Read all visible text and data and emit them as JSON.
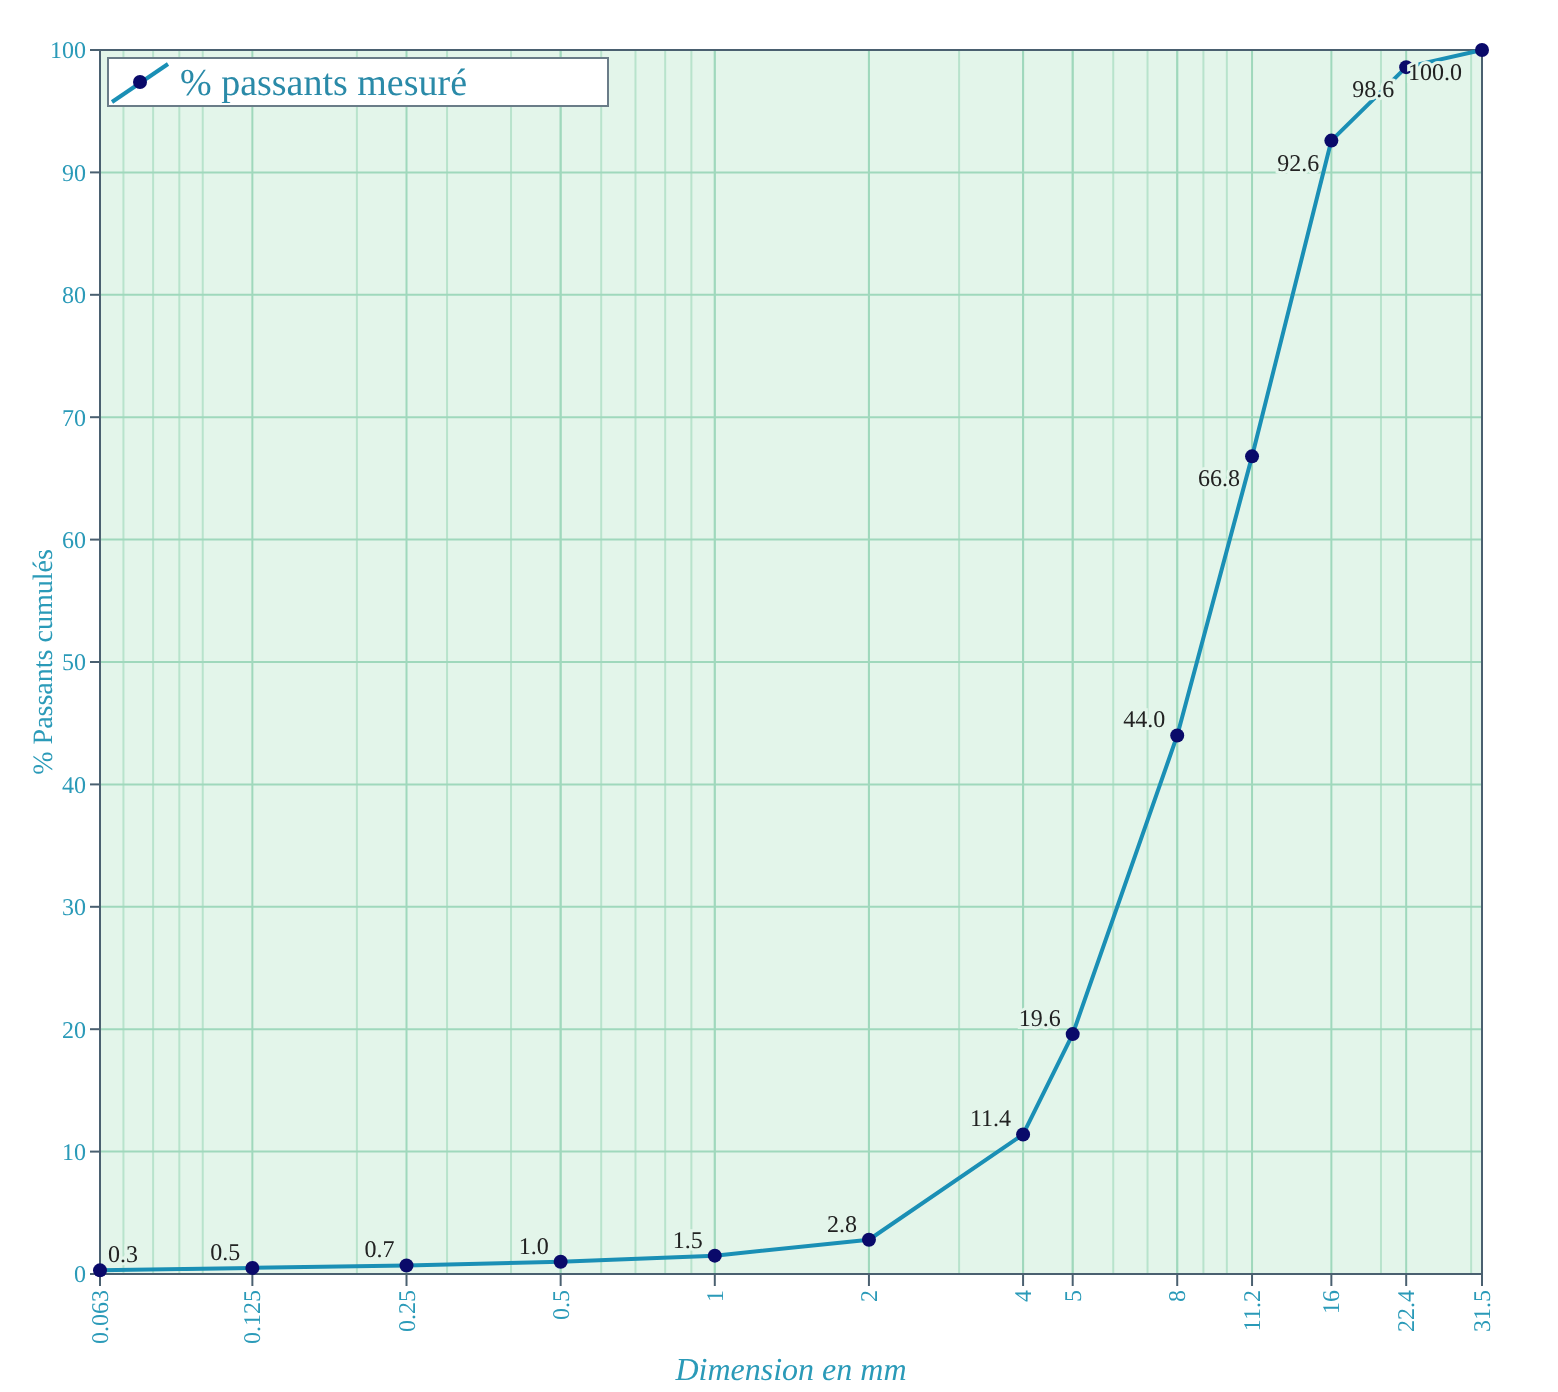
{
  "chart_data": {
    "type": "line",
    "xlabel": "Dimension en mm",
    "ylabel": "% Passants cumulés",
    "log": "x",
    "x": [
      0.063,
      0.125,
      0.25,
      0.5,
      1,
      2,
      4,
      5,
      8,
      11.2,
      16,
      22.4,
      31.5
    ],
    "series": [
      {
        "name": "% passants mesuré",
        "color": "#1a8fb5",
        "values": [
          0.3,
          0.5,
          0.7,
          1.0,
          1.5,
          2.8,
          11.4,
          19.6,
          44.0,
          66.8,
          92.6,
          98.6,
          100.0
        ],
        "value_labels": [
          "0.3",
          "0.5",
          "0.7",
          "1.0",
          "1.5",
          "2.8",
          "11.4",
          "19.6",
          "44.0",
          "66.8",
          "92.6",
          "98.6",
          "100.0"
        ]
      }
    ],
    "xlim": [
      0.063,
      31.5
    ],
    "xticks": [
      0.063,
      0.125,
      0.25,
      0.5,
      1,
      2,
      4,
      5,
      8,
      11.2,
      16,
      22.4,
      31.5
    ],
    "ylim": [
      0,
      100
    ],
    "yticks": [
      0,
      10,
      20,
      30,
      40,
      50,
      60,
      70,
      80,
      90,
      100
    ],
    "grid": true,
    "legend": "top left",
    "marker": "circle",
    "line_style": "solid"
  }
}
